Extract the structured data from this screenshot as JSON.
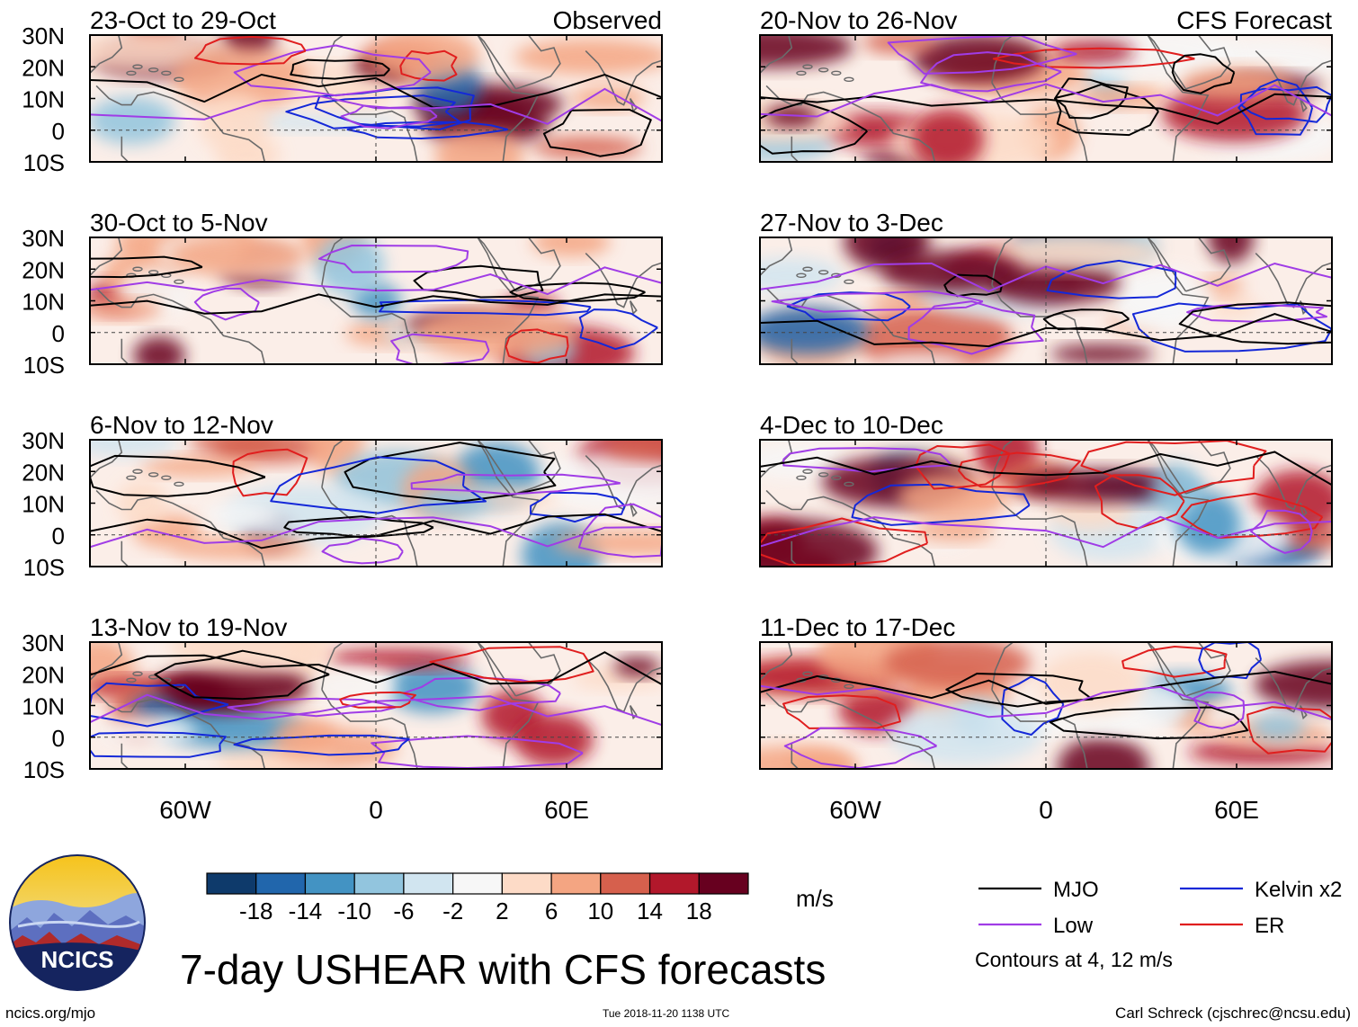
{
  "chart_data": {
    "type": "heatmap",
    "title": "7-day USHEAR with CFS forecasts",
    "variable": "USHEAR",
    "units": "m/s",
    "left_column_header": "Observed",
    "right_column_header": "CFS Forecast",
    "panels_observed": [
      {
        "period": "23-Oct to 29-Oct"
      },
      {
        "period": "30-Oct to 5-Nov"
      },
      {
        "period": "6-Nov to 12-Nov"
      },
      {
        "period": "13-Nov to 19-Nov"
      }
    ],
    "panels_forecast": [
      {
        "period": "20-Nov to 26-Nov"
      },
      {
        "period": "27-Nov to 3-Dec"
      },
      {
        "period": "4-Dec to 10-Dec"
      },
      {
        "period": "11-Dec to 17-Dec"
      }
    ],
    "lat_ticks": [
      "30N",
      "20N",
      "10N",
      "0",
      "10S"
    ],
    "lat_range": [
      -10,
      30
    ],
    "lon_ticks": [
      "60W",
      "0",
      "60E"
    ],
    "lon_range": [
      -90,
      90
    ],
    "colorbar": {
      "tick_labels": [
        "-18",
        "-14",
        "-10",
        "-6",
        "-2",
        "2",
        "6",
        "10",
        "14",
        "18"
      ],
      "colors": [
        "#0e3a6b",
        "#2166ac",
        "#4393c3",
        "#92c5de",
        "#d1e5f0",
        "#f7f7f7",
        "#fddbc7",
        "#f4a582",
        "#d6604d",
        "#b2182b",
        "#67001f"
      ]
    },
    "legend": [
      {
        "label": "MJO",
        "color": "#000000"
      },
      {
        "label": "Kelvin x2",
        "color": "#1428d8"
      },
      {
        "label": "Low",
        "color": "#a03ce6"
      },
      {
        "label": "ER",
        "color": "#e01e1e"
      }
    ],
    "contour_note": "Contours at 4, 12 m/s"
  },
  "footer": {
    "logo_text": "NCICS",
    "website": "ncics.org/mjo",
    "timestamp": "Tue 2018-11-20 1138 UTC",
    "author": "Carl Schreck (cjschrec@ncsu.edu)"
  }
}
